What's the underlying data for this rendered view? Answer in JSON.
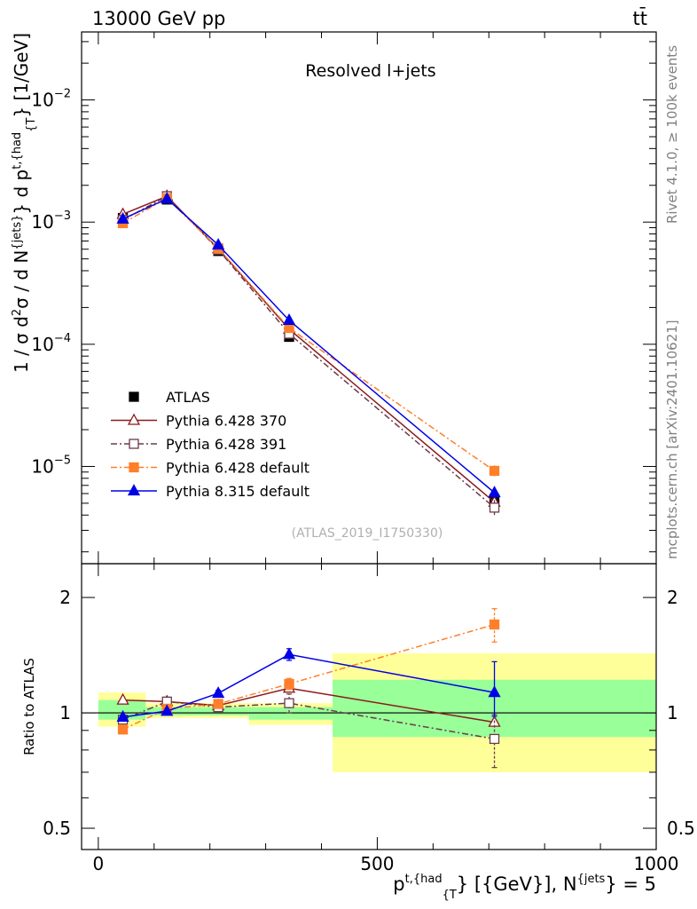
{
  "header": {
    "left": "13000 GeV pp",
    "right": "tt̄"
  },
  "side_text": {
    "rivet": "Rivet 4.1.0, ≥ 100k events",
    "site": "mcplots.cern.ch [arXiv:2401.10621]"
  },
  "chart_data": [
    {
      "panel": "main",
      "type": "line",
      "title": "Resolved l+jets",
      "watermark": "(ATLAS_2019_I1750330)",
      "y_scale": "log",
      "ylabel_parts": {
        "a": "1 / σ d",
        "a_sup": "2",
        "b": "σ / d N",
        "b_sup": "{jets}",
        "c": "} d p",
        "c_sup": "t,{had",
        "c_sub": "{T",
        "d": "} [1/GeV]"
      },
      "ylim": [
        1.6e-06,
        0.036
      ],
      "yticks": [
        {
          "v": 1e-05,
          "base": "10",
          "exp": "−5"
        },
        {
          "v": 0.0001,
          "base": "10",
          "exp": "−4"
        },
        {
          "v": 0.001,
          "base": "10",
          "exp": "−3"
        },
        {
          "v": 0.01,
          "base": "10",
          "exp": "−2"
        }
      ],
      "xlim": [
        -30,
        1000
      ],
      "x": [
        44,
        123,
        215,
        342,
        710
      ],
      "legend_position": "lower-left",
      "series": [
        {
          "name": "ATLAS",
          "color": "#000000",
          "marker": "square-filled",
          "dash": "none",
          "connect": false,
          "values": [
            0.00108,
            0.00153,
            0.00058,
            0.000115,
            5.4e-06
          ],
          "err_low": [
            0.00103,
            0.00147,
            0.00055,
            0.00011,
            5e-06
          ],
          "err_high": [
            0.00113,
            0.00159,
            0.00061,
            0.00012,
            5.8e-06
          ]
        },
        {
          "name": "Pythia 6.428 370",
          "color": "#8b1a1a",
          "marker": "triangle-open",
          "dash": "solid",
          "connect": true,
          "values": [
            0.00116,
            0.00163,
            0.000605,
            0.000133,
            5.1e-06
          ]
        },
        {
          "name": "Pythia 6.428 391",
          "color": "#6b3a4a",
          "marker": "square-open",
          "dash": "dashdot",
          "connect": true,
          "values": [
            0.00104,
            0.00163,
            0.000595,
            0.000122,
            4.6e-06
          ],
          "err_low": [
            0.00102,
            0.00158,
            0.000585,
            0.000118,
            4e-06
          ],
          "err_high": [
            0.00106,
            0.00168,
            0.000605,
            0.000126,
            5.3e-06
          ]
        },
        {
          "name": "Pythia 6.428 default",
          "color": "#ff7f2a",
          "marker": "square-filled",
          "dash": "dashdot",
          "connect": true,
          "values": [
            0.00098,
            0.00157,
            0.00061,
            0.000136,
            9.2e-06
          ],
          "err_low": [
            0.00096,
            0.00152,
            0.0006,
            0.00013,
            8.3e-06
          ],
          "err_high": [
            0.001,
            0.00162,
            0.00062,
            0.000142,
            1.02e-05
          ]
        },
        {
          "name": "Pythia 8.315 default",
          "color": "#0000e6",
          "marker": "triangle-filled",
          "dash": "solid",
          "connect": true,
          "values": [
            0.00106,
            0.00155,
            0.00065,
            0.000157,
            6.1e-06
          ],
          "err_low": [
            0.00104,
            0.0015,
            0.00064,
            0.000153,
            5.5e-06
          ],
          "err_high": [
            0.00108,
            0.0016,
            0.00066,
            0.000161,
            6.8e-06
          ]
        }
      ]
    },
    {
      "panel": "ratio",
      "type": "line",
      "ylabel": "Ratio to ATLAS",
      "xlabel_parts": {
        "p": "p",
        "p_sup": "t,{had",
        "p_sub": "{T",
        "rest": "} [{GeV}], N",
        "n_sup": "{jets",
        "eq": "} = 5"
      },
      "y_scale": "log",
      "ylim": [
        0.44,
        2.45
      ],
      "yticks": [
        {
          "v": 0.5,
          "label": "0.5"
        },
        {
          "v": 1,
          "label": "1"
        },
        {
          "v": 2,
          "label": "2"
        }
      ],
      "xlim": [
        -30,
        1000
      ],
      "xticks": [
        {
          "v": 0,
          "label": "0"
        },
        {
          "v": 500,
          "label": "500"
        },
        {
          "v": 1000,
          "label": "1000"
        }
      ],
      "reference": 1,
      "bands": {
        "bin_edges": [
          0,
          85,
          270,
          420,
          1000
        ],
        "outer_low": [
          0.92,
          0.97,
          0.93,
          0.7
        ],
        "outer_high": [
          1.13,
          1.06,
          1.06,
          1.43
        ],
        "inner_low": [
          0.96,
          0.985,
          0.96,
          0.865
        ],
        "inner_high": [
          1.08,
          1.035,
          1.035,
          1.22
        ],
        "outer_color": "#ffff99",
        "inner_color": "#99ff99"
      },
      "x": [
        44,
        123,
        215,
        342,
        710
      ],
      "series": [
        {
          "name": "Pythia 6.428 370",
          "color": "#8b1a1a",
          "marker": "triangle-open",
          "dash": "solid",
          "values": [
            1.08,
            1.07,
            1.045,
            1.16,
            0.945
          ]
        },
        {
          "name": "Pythia 6.428 391",
          "color": "#6b3a4a",
          "marker": "square-open",
          "dash": "dashdot",
          "values": [
            0.96,
            1.07,
            1.035,
            1.06,
            0.855
          ],
          "err_low": [
            0.945,
            1.06,
            1.02,
            1.0,
            0.72
          ],
          "err_high": [
            0.975,
            1.08,
            1.05,
            1.12,
            0.99
          ]
        },
        {
          "name": "Pythia 6.428 default",
          "color": "#ff7f2a",
          "marker": "square-filled",
          "dash": "dashdot",
          "values": [
            0.905,
            1.025,
            1.055,
            1.19,
            1.7
          ],
          "err_low": [
            0.885,
            1.015,
            1.04,
            1.15,
            1.53
          ],
          "err_high": [
            0.925,
            1.035,
            1.07,
            1.23,
            1.87
          ]
        },
        {
          "name": "Pythia 8.315 default",
          "color": "#0000e6",
          "marker": "triangle-filled",
          "dash": "solid",
          "values": [
            0.975,
            1.01,
            1.125,
            1.42,
            1.13
          ],
          "err_low": [
            0.965,
            1.0,
            1.105,
            1.37,
            0.98
          ],
          "err_high": [
            0.985,
            1.02,
            1.145,
            1.47,
            1.36
          ]
        }
      ]
    }
  ]
}
